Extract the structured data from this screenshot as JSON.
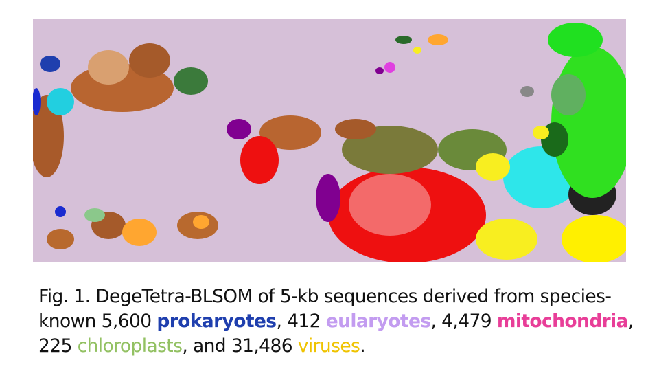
{
  "figure": {
    "caption": {
      "prefix": "Fig. 1. DegeTetra-BLSOM of 5-kb sequences derived from species-known 5,600 ",
      "prokaryotes": "prokaryotes",
      "sep1": ", 412 ",
      "eukaryotes": "eularyotes",
      "sep2": ", 4,479 ",
      "mitochondria": "mitochondria",
      "sep3": ", 225 ",
      "chloroplasts": "chloroplasts",
      "sep4": ", and 31,486 ",
      "viruses": "viruses",
      "suffix": "."
    },
    "colors": {
      "background": "#d6c0d8",
      "prokaryotes": "#1f3fae",
      "eukaryotes": "#c39cf0",
      "mitochondria": "#e83e98",
      "chloroplasts": "#93c163",
      "viruses": "#efc300"
    }
  }
}
